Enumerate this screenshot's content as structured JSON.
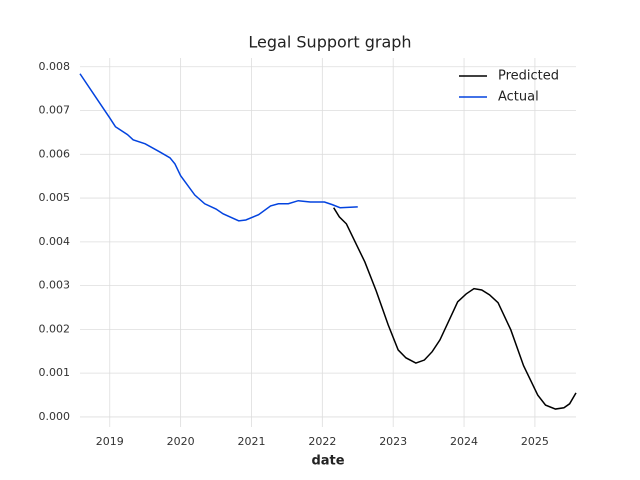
{
  "chart_data": {
    "type": "line",
    "title": "Legal Support graph",
    "xlabel": "date",
    "xlim": [
      2018.58,
      2025.58
    ],
    "xticks": [
      2019,
      2020,
      2021,
      2022,
      2023,
      2024,
      2025
    ],
    "ylim": [
      -0.00023,
      0.0082
    ],
    "yticks": [
      {
        "value": 0,
        "label": "0.000"
      },
      {
        "value": 0.001,
        "label": "0.001"
      },
      {
        "value": 0.002,
        "label": "0.002"
      },
      {
        "value": 0.003,
        "label": "0.003"
      },
      {
        "value": 0.004,
        "label": "0.004"
      },
      {
        "value": 0.005,
        "label": "0.005"
      },
      {
        "value": 0.006,
        "label": "0.006"
      },
      {
        "value": 0.007,
        "label": "0.007"
      },
      {
        "value": 0.008,
        "label": "0.008"
      }
    ],
    "grid": true,
    "legend": "upper right",
    "series": [
      {
        "name": "Predicted",
        "color": "#000000",
        "x": [
          2022.16,
          2022.24,
          2022.34,
          2022.6,
          2022.76,
          2022.93,
          2023.07,
          2023.18,
          2023.32,
          2023.44,
          2023.55,
          2023.66,
          2023.83,
          2023.91,
          2024.03,
          2024.14,
          2024.25,
          2024.36,
          2024.48,
          2024.66,
          2024.84,
          2025.04,
          2025.15,
          2025.29,
          2025.41,
          2025.49,
          2025.58
        ],
        "values": [
          0.00478,
          0.00457,
          0.00441,
          0.00354,
          0.00288,
          0.0021,
          0.00153,
          0.00135,
          0.00123,
          0.0013,
          0.00149,
          0.00176,
          0.00235,
          0.00263,
          0.00281,
          0.00293,
          0.0029,
          0.00279,
          0.00261,
          0.00199,
          0.00117,
          0.0005,
          0.00027,
          0.00018,
          0.00021,
          0.0003,
          0.00055
        ]
      },
      {
        "name": "Actual",
        "color": "#0343df",
        "x": [
          2018.58,
          2018.8,
          2019.0,
          2019.08,
          2019.25,
          2019.33,
          2019.5,
          2019.7,
          2019.85,
          2019.92,
          2020.0,
          2020.2,
          2020.34,
          2020.5,
          2020.6,
          2020.82,
          2020.92,
          2021.1,
          2021.27,
          2021.38,
          2021.52,
          2021.66,
          2021.83,
          2022.03,
          2022.14,
          2022.25,
          2022.5
        ],
        "values": [
          0.00784,
          0.00731,
          0.00683,
          0.00663,
          0.00645,
          0.00633,
          0.00624,
          0.00606,
          0.00592,
          0.00578,
          0.00551,
          0.00507,
          0.00487,
          0.00475,
          0.00464,
          0.00448,
          0.0045,
          0.00462,
          0.00482,
          0.00487,
          0.00487,
          0.00494,
          0.00491,
          0.00491,
          0.00485,
          0.00478,
          0.0048
        ]
      }
    ]
  }
}
